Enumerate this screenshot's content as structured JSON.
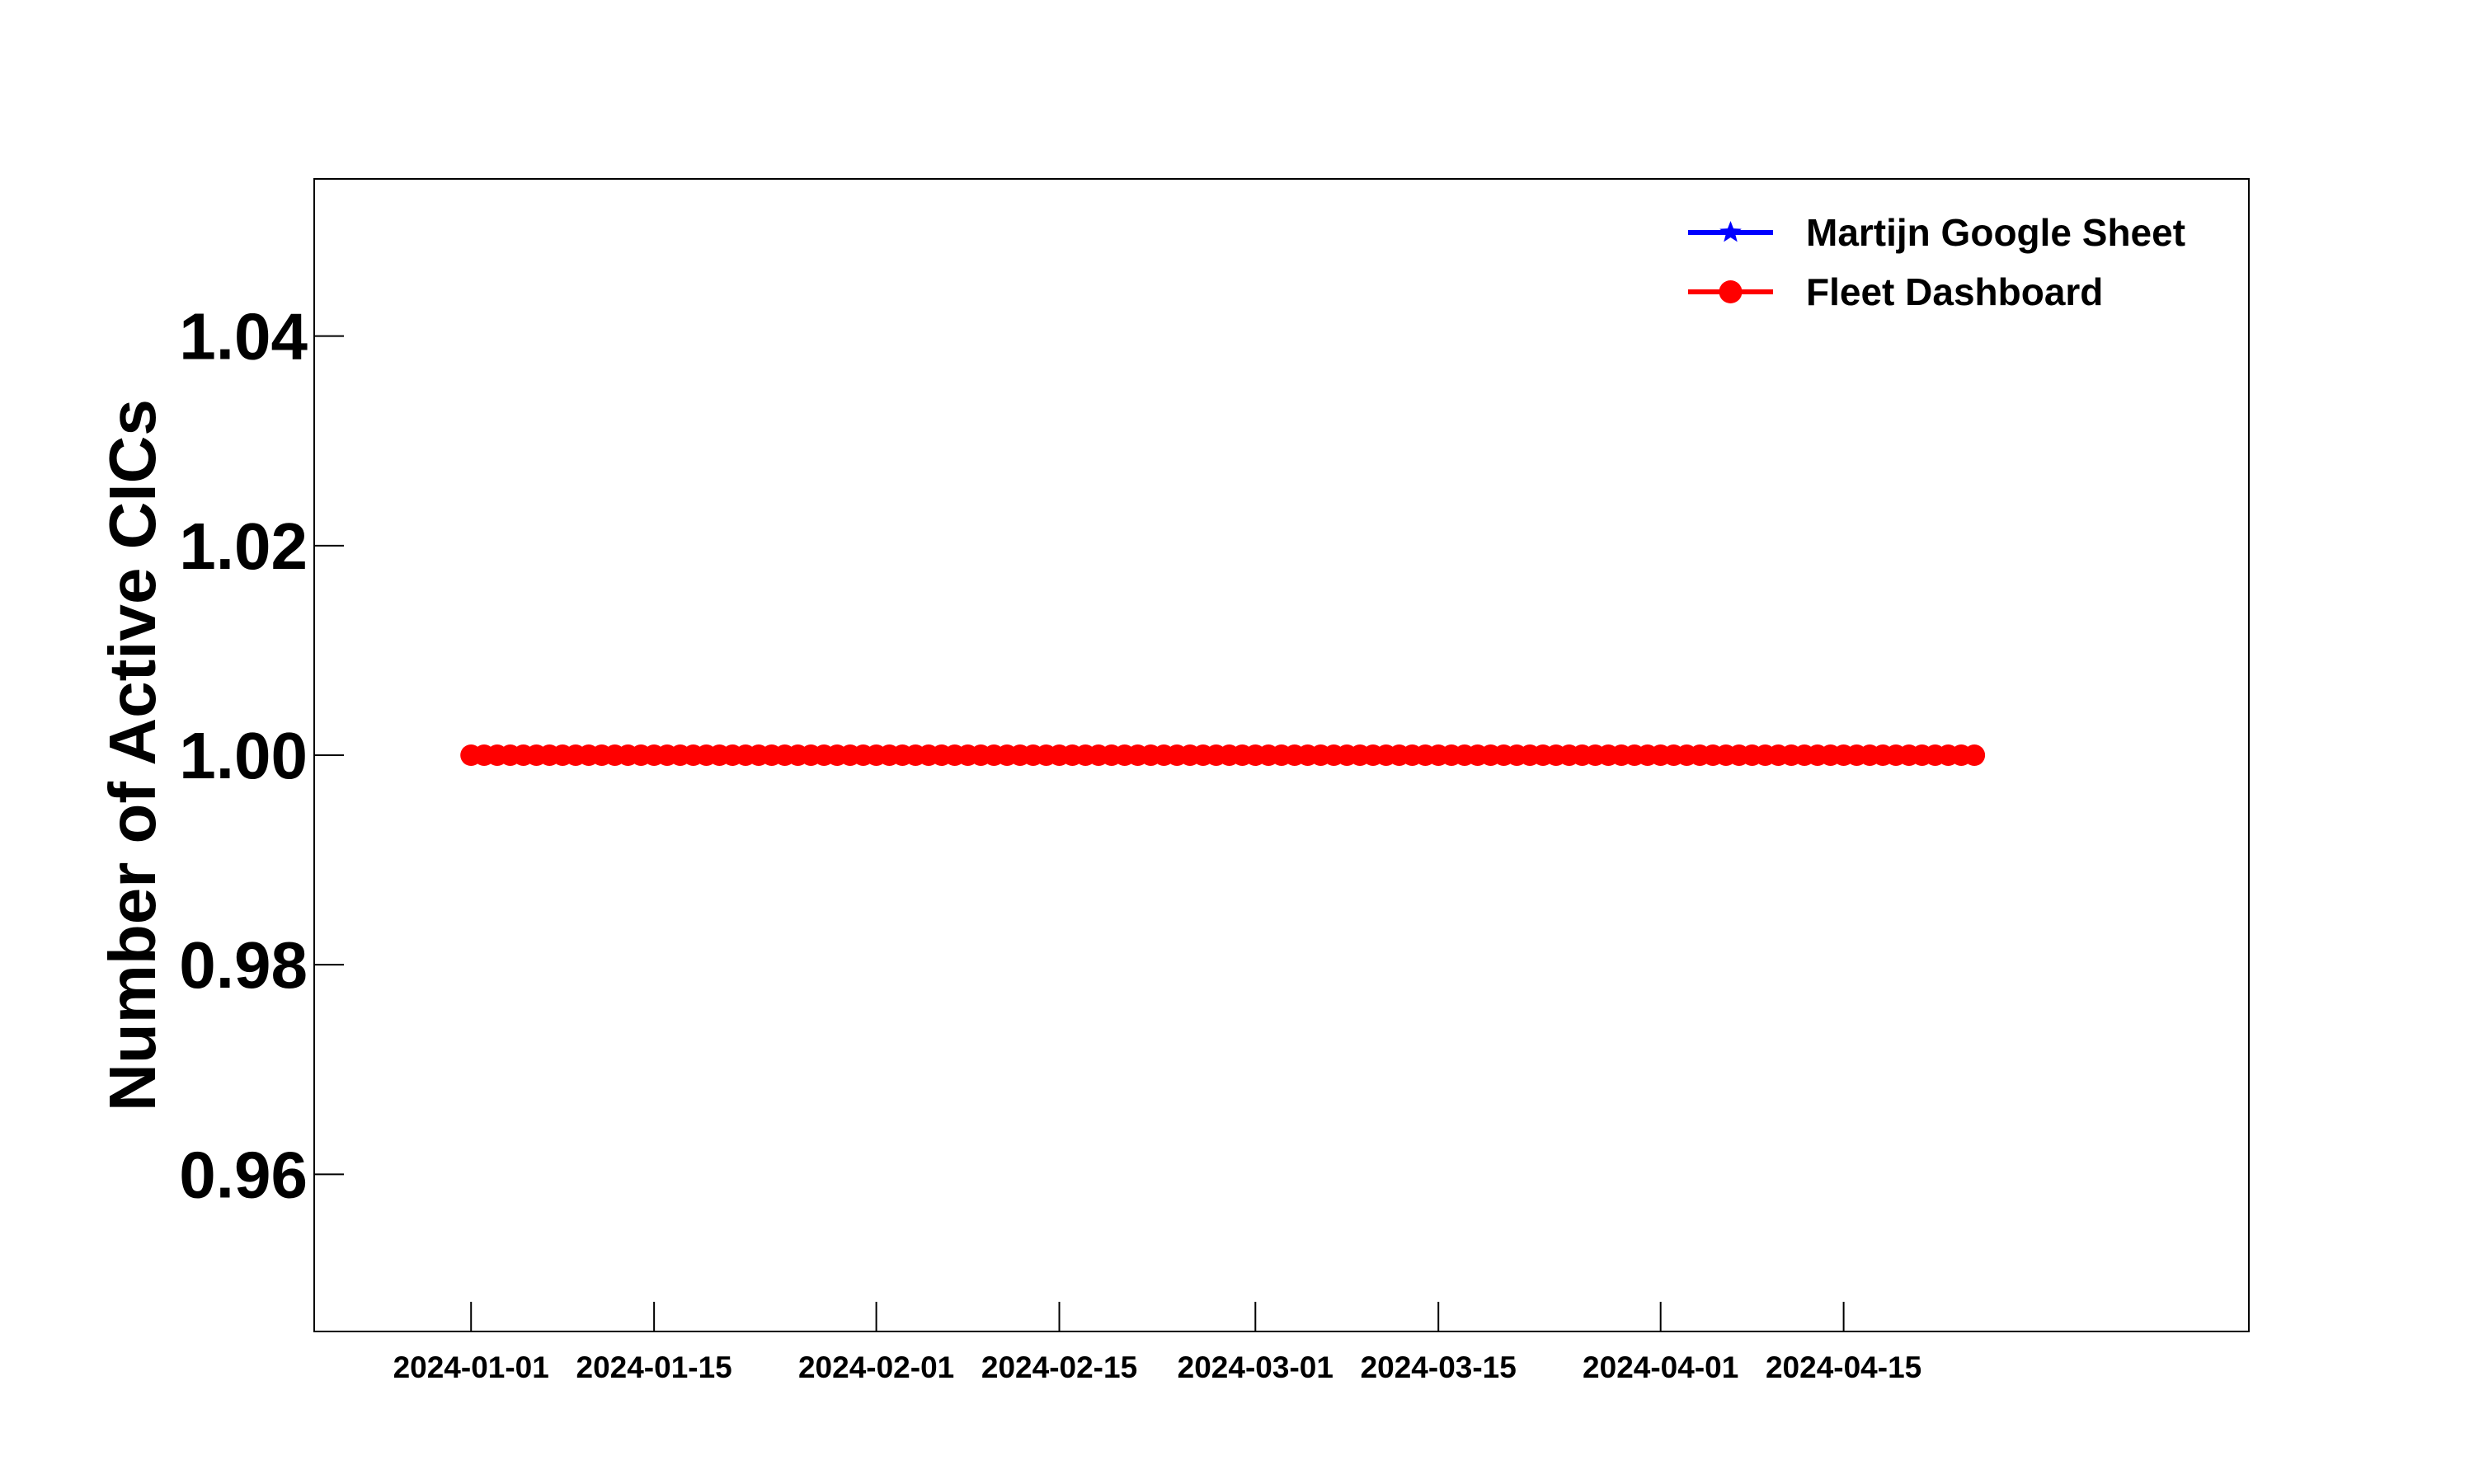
{
  "chart_data": {
    "type": "line",
    "title": "",
    "xlabel": "",
    "ylabel": "Number of Active CICs",
    "x_start": "2024-01-01",
    "x_end": "2024-04-25",
    "xlim": [
      "2023-12-20",
      "2024-05-16"
    ],
    "ylim": [
      0.945,
      1.055
    ],
    "x_ticks": [
      "2024-01-01",
      "2024-01-15",
      "2024-02-01",
      "2024-02-15",
      "2024-03-01",
      "2024-03-15",
      "2024-04-01",
      "2024-04-15"
    ],
    "y_ticks": [
      "0.96",
      "0.98",
      "1.00",
      "1.02",
      "1.04"
    ],
    "grid": false,
    "legend_position": "top-right",
    "series": [
      {
        "name": "Martijn Google Sheet",
        "color": "#0000ff",
        "marker": "star",
        "value": 1.0
      },
      {
        "name": "Fleet Dashboard",
        "color": "#ff0000",
        "marker": "circle",
        "value": 1.0
      }
    ]
  }
}
